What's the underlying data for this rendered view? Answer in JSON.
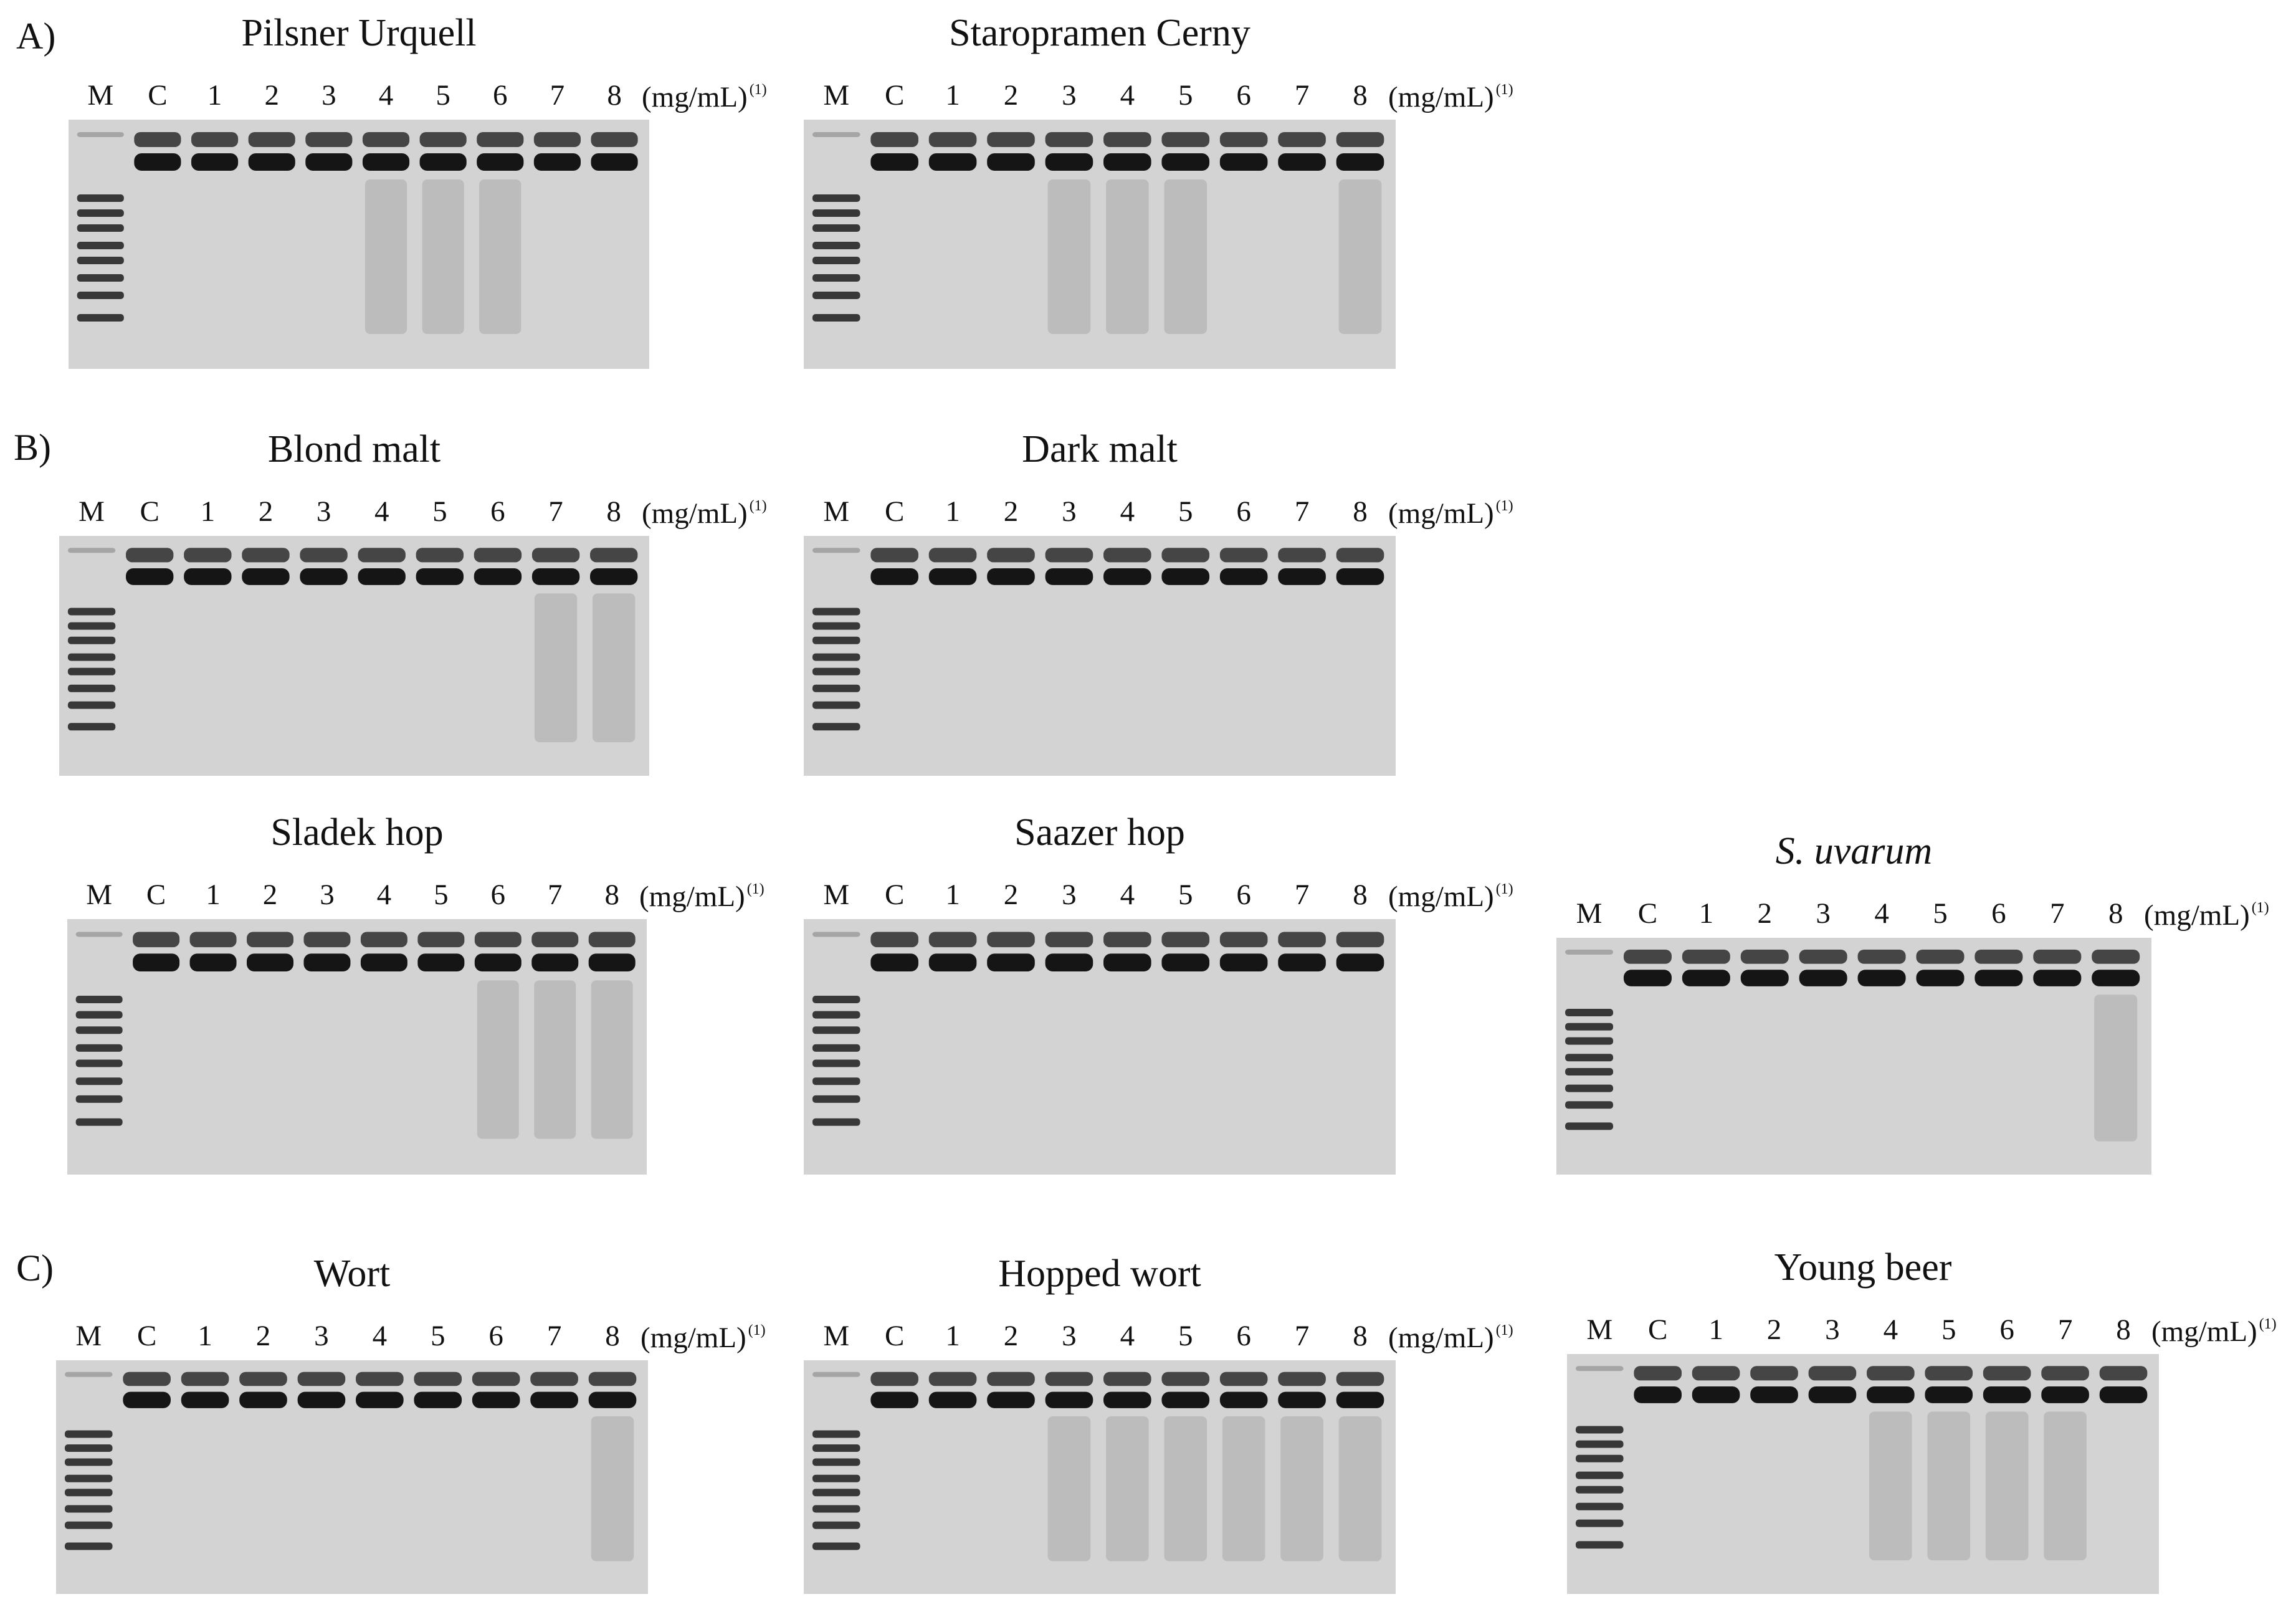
{
  "figure": {
    "sections": [
      {
        "label": "A)"
      },
      {
        "label": "B)"
      },
      {
        "label": "C)"
      }
    ],
    "lane_labels": [
      "M",
      "C",
      "1",
      "2",
      "3",
      "4",
      "5",
      "6",
      "7",
      "8"
    ],
    "unit": "(mg/mL)",
    "unit_sup": "(1)",
    "colors": {
      "gel_background": "#d3d3d3",
      "band": "#151515",
      "ladder": "#1c1c1c",
      "smear": "#6f6f6f"
    },
    "panels": [
      {
        "title": "Pilsner Urquell",
        "italic": false,
        "smear_lanes": [
          4,
          5,
          6
        ]
      },
      {
        "title": "Staropramen Cerny",
        "italic": false,
        "smear_lanes": [
          3,
          4,
          5,
          8
        ]
      },
      {
        "title": "Blond malt",
        "italic": false,
        "smear_lanes": [
          7,
          8
        ]
      },
      {
        "title": "Dark malt",
        "italic": false,
        "smear_lanes": []
      },
      {
        "title": "Sladek hop",
        "italic": false,
        "smear_lanes": [
          6,
          7,
          8
        ]
      },
      {
        "title": "Saazer hop",
        "italic": false,
        "smear_lanes": []
      },
      {
        "title": "S. uvarum",
        "italic": true,
        "smear_lanes": [
          8
        ]
      },
      {
        "title": "Wort",
        "italic": false,
        "smear_lanes": [
          8
        ]
      },
      {
        "title": "Hopped wort",
        "italic": false,
        "smear_lanes": [
          3,
          4,
          5,
          6,
          7,
          8
        ]
      },
      {
        "title": "Young beer",
        "italic": false,
        "smear_lanes": [
          4,
          5,
          6,
          7
        ]
      }
    ]
  }
}
